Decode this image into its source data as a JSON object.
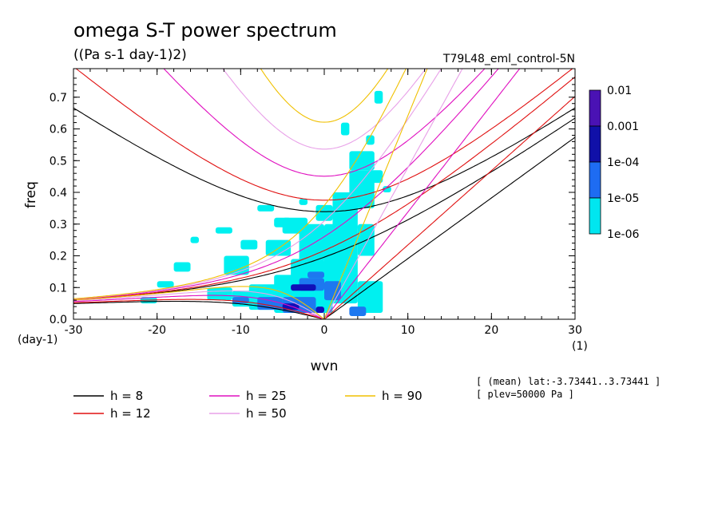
{
  "title": "omega S-T power spectrum",
  "units": "((Pa s-1 day-1)2)",
  "run_name": "T79L48_eml_control-5N",
  "info_lines": [
    "[ (mean) lat:-3.73441..3.73441 ]",
    "[ plev=50000 Pa ]"
  ],
  "chart_data": {
    "type": "heatmap",
    "xlabel": "wvn",
    "ylabel": "freq",
    "x_unit_label": "(1)",
    "y_unit_label": "(day-1)",
    "xlim": [
      -30,
      30
    ],
    "ylim": [
      0,
      0.79
    ],
    "x_ticks": [
      -30,
      -20,
      -10,
      0,
      10,
      20,
      30
    ],
    "x_tick_labels": [
      "-30",
      "-20",
      "-10",
      "0",
      "10",
      "20",
      "30"
    ],
    "y_ticks": [
      0,
      0.1,
      0.2,
      0.3,
      0.4,
      0.5,
      0.6,
      0.7
    ],
    "y_tick_labels": [
      "0.0",
      "0.1",
      "0.2",
      "0.3",
      "0.4",
      "0.5",
      "0.6",
      "0.7"
    ],
    "colorbar": {
      "levels": [
        "0.01",
        "0.001",
        "1e-04",
        "1e-05",
        "1e-06"
      ],
      "colors": [
        "#4a12b4",
        "#1010a8",
        "#1e6cf2",
        "#00e6f0"
      ]
    },
    "contour_regions": [
      {
        "level": "1e-06",
        "color": "#00f0f0",
        "cells": [
          [
            -11,
            0.04,
            4,
            0.05
          ],
          [
            -9,
            0.03,
            4,
            0.08
          ],
          [
            -6,
            0.02,
            6,
            0.12
          ],
          [
            -4,
            0.12,
            4,
            0.07
          ],
          [
            -12,
            0.14,
            3,
            0.06
          ],
          [
            -7,
            0.2,
            3,
            0.05
          ],
          [
            -3,
            0.18,
            3,
            0.12
          ],
          [
            0,
            0.05,
            4,
            0.25
          ],
          [
            1,
            0.28,
            3,
            0.12
          ],
          [
            3,
            0.35,
            3,
            0.12
          ],
          [
            3,
            0.47,
            3,
            0.06
          ],
          [
            4,
            0.2,
            2,
            0.1
          ],
          [
            -5,
            0.27,
            3,
            0.05
          ],
          [
            -14,
            0.06,
            3,
            0.04
          ],
          [
            -2,
            0.02,
            3,
            0.06
          ],
          [
            4,
            0.02,
            3,
            0.1
          ],
          [
            -18,
            0.15,
            2,
            0.03
          ],
          [
            -1,
            0.31,
            2,
            0.05
          ],
          [
            5,
            0.55,
            1,
            0.03
          ],
          [
            6,
            0.68,
            1,
            0.04
          ],
          [
            7,
            0.4,
            1,
            0.02
          ],
          [
            -10,
            0.22,
            2,
            0.03
          ],
          [
            -13,
            0.27,
            2,
            0.02
          ],
          [
            -16,
            0.24,
            1,
            0.02
          ],
          [
            -8,
            0.34,
            2,
            0.02
          ],
          [
            2,
            0.58,
            1,
            0.04
          ],
          [
            -3,
            0.36,
            1,
            0.02
          ],
          [
            -20,
            0.1,
            2,
            0.02
          ],
          [
            -22,
            0.05,
            2,
            0.02
          ],
          [
            -6,
            0.29,
            2,
            0.03
          ],
          [
            5,
            0.43,
            2,
            0.04
          ]
        ]
      },
      {
        "level": "1e-05",
        "color": "#1d78f0",
        "cells": [
          [
            -8,
            0.03,
            3,
            0.04
          ],
          [
            -5,
            0.02,
            4,
            0.05
          ],
          [
            -3,
            0.09,
            3,
            0.04
          ],
          [
            0,
            0.06,
            2,
            0.06
          ],
          [
            3,
            0.01,
            2,
            0.03
          ],
          [
            -11,
            0.05,
            2,
            0.02
          ],
          [
            -2,
            0.13,
            2,
            0.02
          ]
        ]
      },
      {
        "level": "1e-04",
        "color": "#1010b8",
        "cells": [
          [
            -4,
            0.09,
            3,
            0.02
          ],
          [
            -5,
            0.03,
            2,
            0.02
          ],
          [
            -1,
            0.02,
            1,
            0.02
          ]
        ]
      }
    ],
    "dispersion_curves": [
      {
        "label": "h = 8",
        "color": "#000000",
        "h": 8
      },
      {
        "label": "h = 12",
        "color": "#e01010",
        "h": 12
      },
      {
        "label": "h = 25",
        "color": "#e010c0",
        "h": 25
      },
      {
        "label": "h = 50",
        "color": "#e8a0e8",
        "h": 50
      },
      {
        "label": "h = 90",
        "color": "#f0c000",
        "h": 90
      }
    ]
  }
}
